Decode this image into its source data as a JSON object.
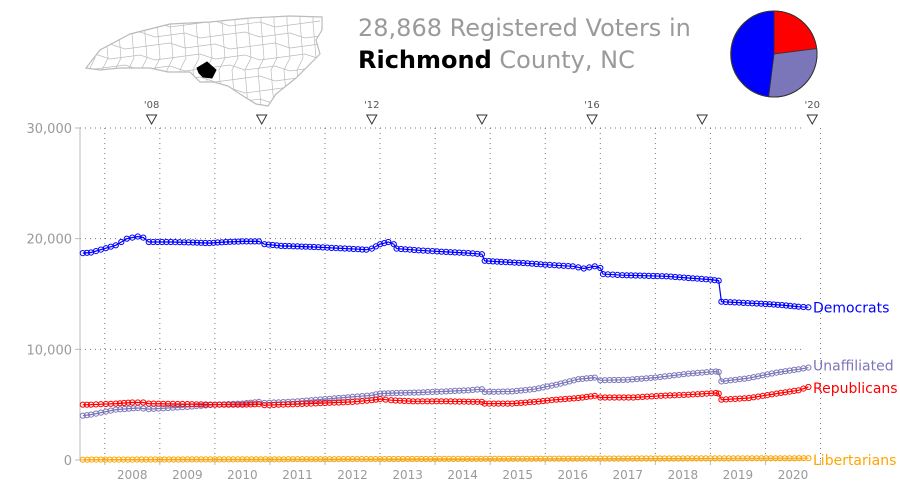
{
  "header": {
    "count": "28,868",
    "line1_suffix": " Registered Voters in",
    "county": "Richmond",
    "line2_suffix": " County, NC"
  },
  "map": {
    "icon": "north-carolina-county-map",
    "highlight_color": "#000000",
    "outline_color": "#bbbbbb"
  },
  "pie": {
    "slices": [
      {
        "name": "Republicans",
        "fraction": 0.23,
        "color": "#ff0000"
      },
      {
        "name": "Unaffiliated",
        "fraction": 0.29,
        "color": "#7b76b9"
      },
      {
        "name": "Democrats",
        "fraction": 0.48,
        "color": "#0000ff"
      }
    ]
  },
  "chart_data": {
    "type": "line",
    "title": "",
    "xlabel": "",
    "ylabel": "",
    "xlim": [
      2007.55,
      2020.7
    ],
    "ylim": [
      0,
      30000
    ],
    "y_ticks": [
      0,
      10000,
      20000,
      30000
    ],
    "y_tick_labels": [
      "0",
      "10,000",
      "20,000",
      "30,000"
    ],
    "x_tick_labels": [
      "2008",
      "2009",
      "2010",
      "2011",
      "2012",
      "2013",
      "2014",
      "2015",
      "2016",
      "2017",
      "2018",
      "2019",
      "2020"
    ],
    "election_markers": [
      {
        "x": 2008.85,
        "label": "'08"
      },
      {
        "x": 2010.85,
        "label": ""
      },
      {
        "x": 2012.85,
        "label": "'12"
      },
      {
        "x": 2014.85,
        "label": ""
      },
      {
        "x": 2016.85,
        "label": "'16"
      },
      {
        "x": 2018.85,
        "label": ""
      },
      {
        "x": 2020.85,
        "label": "'20"
      }
    ],
    "grid": true,
    "series": [
      {
        "name": "Democrats",
        "color": "#0000ff",
        "points": [
          [
            2007.6,
            18700
          ],
          [
            2007.75,
            18750
          ],
          [
            2008.2,
            19400
          ],
          [
            2008.3,
            19700
          ],
          [
            2008.4,
            20000
          ],
          [
            2008.6,
            20200
          ],
          [
            2008.7,
            20100
          ],
          [
            2008.8,
            19700
          ],
          [
            2009.2,
            19700
          ],
          [
            2009.6,
            19650
          ],
          [
            2009.9,
            19600
          ],
          [
            2010.2,
            19700
          ],
          [
            2010.5,
            19750
          ],
          [
            2010.8,
            19750
          ],
          [
            2010.9,
            19500
          ],
          [
            2011.2,
            19350
          ],
          [
            2011.5,
            19300
          ],
          [
            2011.8,
            19250
          ],
          [
            2012.2,
            19150
          ],
          [
            2012.6,
            19050
          ],
          [
            2012.75,
            19000
          ],
          [
            2012.85,
            19100
          ],
          [
            2013.0,
            19500
          ],
          [
            2013.15,
            19700
          ],
          [
            2013.25,
            19500
          ],
          [
            2013.3,
            19100
          ],
          [
            2013.7,
            18950
          ],
          [
            2014.2,
            18800
          ],
          [
            2014.6,
            18700
          ],
          [
            2014.85,
            18600
          ],
          [
            2014.9,
            18000
          ],
          [
            2015.2,
            17900
          ],
          [
            2015.6,
            17800
          ],
          [
            2016.0,
            17650
          ],
          [
            2016.5,
            17500
          ],
          [
            2016.7,
            17300
          ],
          [
            2016.9,
            17500
          ],
          [
            2017.0,
            17350
          ],
          [
            2017.05,
            16800
          ],
          [
            2017.4,
            16700
          ],
          [
            2017.8,
            16650
          ],
          [
            2018.2,
            16600
          ],
          [
            2018.6,
            16450
          ],
          [
            2019.0,
            16300
          ],
          [
            2019.15,
            16200
          ],
          [
            2019.2,
            14300
          ],
          [
            2019.6,
            14200
          ],
          [
            2020.0,
            14100
          ],
          [
            2020.3,
            14000
          ],
          [
            2020.6,
            13850
          ],
          [
            2020.78,
            13800
          ]
        ]
      },
      {
        "name": "Unaffiliated",
        "color": "#7b76b9",
        "points": [
          [
            2007.6,
            4000
          ],
          [
            2007.75,
            4100
          ],
          [
            2008.2,
            4550
          ],
          [
            2008.6,
            4700
          ],
          [
            2008.8,
            4600
          ],
          [
            2009.5,
            4800
          ],
          [
            2010.0,
            5000
          ],
          [
            2010.5,
            5100
          ],
          [
            2010.8,
            5250
          ],
          [
            2010.9,
            5150
          ],
          [
            2011.5,
            5300
          ],
          [
            2012.0,
            5500
          ],
          [
            2012.5,
            5700
          ],
          [
            2012.85,
            5850
          ],
          [
            2013.0,
            6000
          ],
          [
            2013.3,
            6050
          ],
          [
            2013.7,
            6100
          ],
          [
            2014.2,
            6200
          ],
          [
            2014.6,
            6300
          ],
          [
            2014.85,
            6400
          ],
          [
            2014.9,
            6150
          ],
          [
            2015.4,
            6200
          ],
          [
            2015.8,
            6400
          ],
          [
            2016.2,
            6800
          ],
          [
            2016.6,
            7300
          ],
          [
            2016.9,
            7450
          ],
          [
            2017.0,
            7200
          ],
          [
            2017.5,
            7250
          ],
          [
            2018.0,
            7450
          ],
          [
            2018.6,
            7800
          ],
          [
            2019.1,
            8000
          ],
          [
            2019.15,
            7950
          ],
          [
            2019.2,
            7100
          ],
          [
            2019.7,
            7400
          ],
          [
            2020.2,
            7900
          ],
          [
            2020.6,
            8200
          ],
          [
            2020.78,
            8350
          ]
        ]
      },
      {
        "name": "Republicans",
        "color": "#ff0000",
        "points": [
          [
            2007.6,
            5000
          ],
          [
            2007.75,
            5000
          ],
          [
            2008.2,
            5100
          ],
          [
            2008.5,
            5200
          ],
          [
            2008.7,
            5200
          ],
          [
            2008.8,
            5100
          ],
          [
            2009.5,
            5050
          ],
          [
            2010.0,
            5000
          ],
          [
            2010.5,
            5000
          ],
          [
            2010.8,
            5050
          ],
          [
            2010.9,
            4950
          ],
          [
            2011.5,
            5050
          ],
          [
            2012.0,
            5150
          ],
          [
            2012.5,
            5250
          ],
          [
            2012.85,
            5400
          ],
          [
            2013.0,
            5500
          ],
          [
            2013.2,
            5400
          ],
          [
            2013.6,
            5300
          ],
          [
            2014.2,
            5300
          ],
          [
            2014.85,
            5250
          ],
          [
            2014.9,
            5100
          ],
          [
            2015.4,
            5100
          ],
          [
            2015.8,
            5250
          ],
          [
            2016.2,
            5450
          ],
          [
            2016.6,
            5600
          ],
          [
            2016.9,
            5800
          ],
          [
            2017.0,
            5650
          ],
          [
            2017.6,
            5650
          ],
          [
            2018.1,
            5800
          ],
          [
            2018.6,
            5900
          ],
          [
            2019.1,
            6050
          ],
          [
            2019.15,
            6000
          ],
          [
            2019.2,
            5450
          ],
          [
            2019.7,
            5600
          ],
          [
            2020.2,
            6000
          ],
          [
            2020.6,
            6300
          ],
          [
            2020.78,
            6600
          ]
        ]
      },
      {
        "name": "Libertarians",
        "color": "#ffa500",
        "points": [
          [
            2007.6,
            30
          ],
          [
            2008.5,
            40
          ],
          [
            2009.5,
            50
          ],
          [
            2010.5,
            60
          ],
          [
            2011.5,
            70
          ],
          [
            2012.5,
            80
          ],
          [
            2013.5,
            90
          ],
          [
            2014.5,
            100
          ],
          [
            2015.5,
            110
          ],
          [
            2016.5,
            120
          ],
          [
            2017.5,
            130
          ],
          [
            2018.5,
            140
          ],
          [
            2019.5,
            150
          ],
          [
            2020.78,
            160
          ]
        ]
      }
    ]
  }
}
